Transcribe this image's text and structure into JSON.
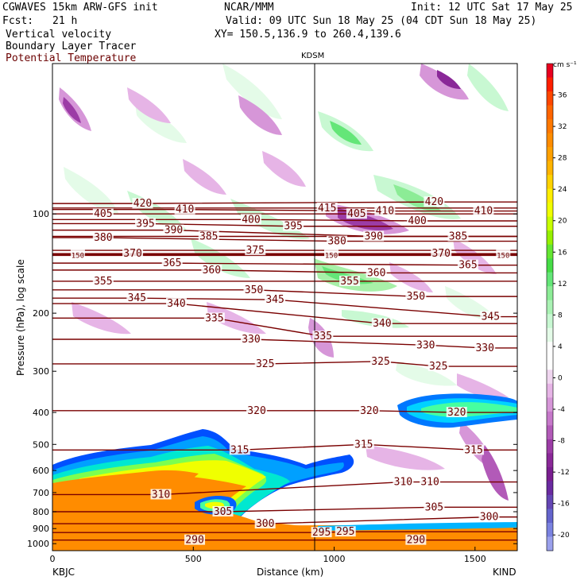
{
  "header": {
    "model": "CGWAVES 15km ARW-GFS init",
    "org": "NCAR/MMM",
    "init": "Init: 12 UTC Sat 17 May 25",
    "fcst_label": "Fcst:",
    "fcst_value": "21 h",
    "valid": "Valid: 09 UTC Sun 18 May 25 (04 CDT Sun 18 May 25)",
    "fields": [
      "Vertical velocity",
      "Boundary Layer Tracer",
      "Potential Temperature"
    ],
    "xy": "XY= 150.5,136.9 to 260.4,139.6"
  },
  "colors": {
    "potential_temperature": "#7a0000",
    "pt_label": "#6b0000",
    "frame": "#000000"
  },
  "chart_data": {
    "type": "heatmap",
    "title": "",
    "xlabel": "Distance (km)",
    "ylabel": "Pressure (hPa), log scale",
    "x_range": [
      0,
      1650
    ],
    "y_range": [
      1050,
      35
    ],
    "y_scale": "log",
    "x_ticks": [
      0,
      500,
      1000,
      1500
    ],
    "x_tick_labels": [
      "0",
      "500",
      "1000",
      "1500"
    ],
    "y_ticks": [
      100,
      200,
      300,
      400,
      500,
      600,
      700,
      800,
      900,
      1000
    ],
    "y_tick_labels": [
      "100",
      "200",
      "300",
      "400",
      "500",
      "600",
      "700",
      "800",
      "900",
      "1000"
    ],
    "start_station": "KBJC",
    "end_station": "KIND",
    "mid_station": {
      "name": "KDSM",
      "x": 935
    },
    "colorbar": {
      "unit": "cm s⁻¹",
      "labels": [
        "36",
        "32",
        "28",
        "24",
        "20",
        "16",
        "12",
        "8",
        "4",
        "0",
        "-4",
        "-8",
        "-12",
        "-16",
        "-20"
      ],
      "label_values": [
        36,
        32,
        28,
        24,
        20,
        16,
        12,
        8,
        4,
        0,
        -4,
        -8,
        -12,
        -16,
        -20
      ],
      "colors": [
        "#e8001e",
        "#ff1e00",
        "#ff4600",
        "#ff6400",
        "#ff7800",
        "#ff8c00",
        "#ffa000",
        "#ffb400",
        "#ffd200",
        "#ffee00",
        "#f0ff00",
        "#c8ff00",
        "#96f000",
        "#64e632",
        "#46dc46",
        "#64e678",
        "#8cec96",
        "#aaf2b4",
        "#c8f8d2",
        "#e4fbe8",
        "#ffffff",
        "#ffffff",
        "#f0d6f0",
        "#e6b4e6",
        "#d696d8",
        "#c678ca",
        "#b25ab8",
        "#9c3ca6",
        "#8a2898",
        "#7a1e90",
        "#6a2aa0",
        "#6446b4",
        "#6464cc",
        "#7a82e0",
        "#9aa0ec"
      ],
      "zero_band": [
        0,
        4
      ],
      "range": [
        -22,
        40
      ]
    },
    "theta_contours": [
      {
        "value": 290,
        "label_x": [
          505,
          1290
        ],
        "label_p": [
          975,
          975
        ]
      },
      {
        "value": 295,
        "label_x": [
          955,
          1040
        ],
        "label_p": [
          925,
          920
        ]
      },
      {
        "value": 300,
        "label_x": [
          755,
          1550
        ],
        "label_p": [
          870,
          830
        ]
      },
      {
        "value": 305,
        "label_x": [
          605,
          1355
        ],
        "label_p": [
          800,
          775
        ]
      },
      {
        "value": 310,
        "label_x": [
          385,
          1245,
          1340
        ],
        "label_p": [
          710,
          650,
          650
        ]
      },
      {
        "value": 315,
        "label_x": [
          665,
          1105,
          1495
        ],
        "label_p": [
          520,
          500,
          520
        ]
      },
      {
        "value": 320,
        "label_x": [
          725,
          1125,
          1435
        ],
        "label_p": [
          395,
          395,
          400
        ]
      },
      {
        "value": 325,
        "label_x": [
          755,
          1165,
          1370
        ],
        "label_p": [
          285,
          280,
          290
        ]
      },
      {
        "value": 330,
        "label_x": [
          705,
          1325,
          1535
        ],
        "label_p": [
          240,
          250,
          255
        ]
      },
      {
        "value": 335,
        "label_x": [
          575,
          960
        ],
        "label_p": [
          207,
          235
        ]
      },
      {
        "value": 340,
        "label_x": [
          440,
          1170
        ],
        "label_p": [
          187,
          215
        ]
      },
      {
        "value": 345,
        "label_x": [
          300,
          790,
          1555
        ],
        "label_p": [
          180,
          182,
          205
        ]
      },
      {
        "value": 350,
        "label_x": [
          715,
          1290
        ],
        "label_p": [
          170,
          178
        ]
      },
      {
        "value": 355,
        "label_x": [
          180,
          1055
        ],
        "label_p": [
          160,
          160
        ]
      },
      {
        "value": 360,
        "label_x": [
          565,
          1150
        ],
        "label_p": [
          148,
          151
        ]
      },
      {
        "value": 365,
        "label_x": [
          425,
          1475
        ],
        "label_p": [
          141,
          143
        ]
      },
      {
        "value": 370,
        "label_x": [
          285,
          1380
        ],
        "label_p": [
          132,
          132
        ]
      },
      {
        "value": 375,
        "label_x": [
          720
        ],
        "label_p": [
          129
        ]
      },
      {
        "value": 380,
        "label_x": [
          180,
          1010
        ],
        "label_p": [
          118,
          121
        ]
      },
      {
        "value": 385,
        "label_x": [
          555,
          1440
        ],
        "label_p": [
          117,
          117
        ]
      },
      {
        "value": 390,
        "label_x": [
          430,
          1140
        ],
        "label_p": [
          112,
          117
        ]
      },
      {
        "value": 395,
        "label_x": [
          330,
          855
        ],
        "label_p": [
          107,
          109
        ]
      },
      {
        "value": 400,
        "label_x": [
          705,
          1295
        ],
        "label_p": [
          104,
          105
        ]
      },
      {
        "value": 405,
        "label_x": [
          180,
          1080
        ],
        "label_p": [
          100,
          100
        ]
      },
      {
        "value": 410,
        "label_x": [
          470,
          1180,
          1530
        ],
        "label_p": [
          97,
          98,
          98
        ]
      },
      {
        "value": 415,
        "label_x": [
          975
        ],
        "label_p": [
          96
        ]
      },
      {
        "value": 420,
        "label_x": [
          320,
          1355
        ],
        "label_p": [
          93,
          92
        ]
      },
      {
        "value": 150,
        "label_x": [
          90,
          990,
          1600
        ],
        "label_p": [
          133,
          133,
          133
        ]
      }
    ]
  }
}
